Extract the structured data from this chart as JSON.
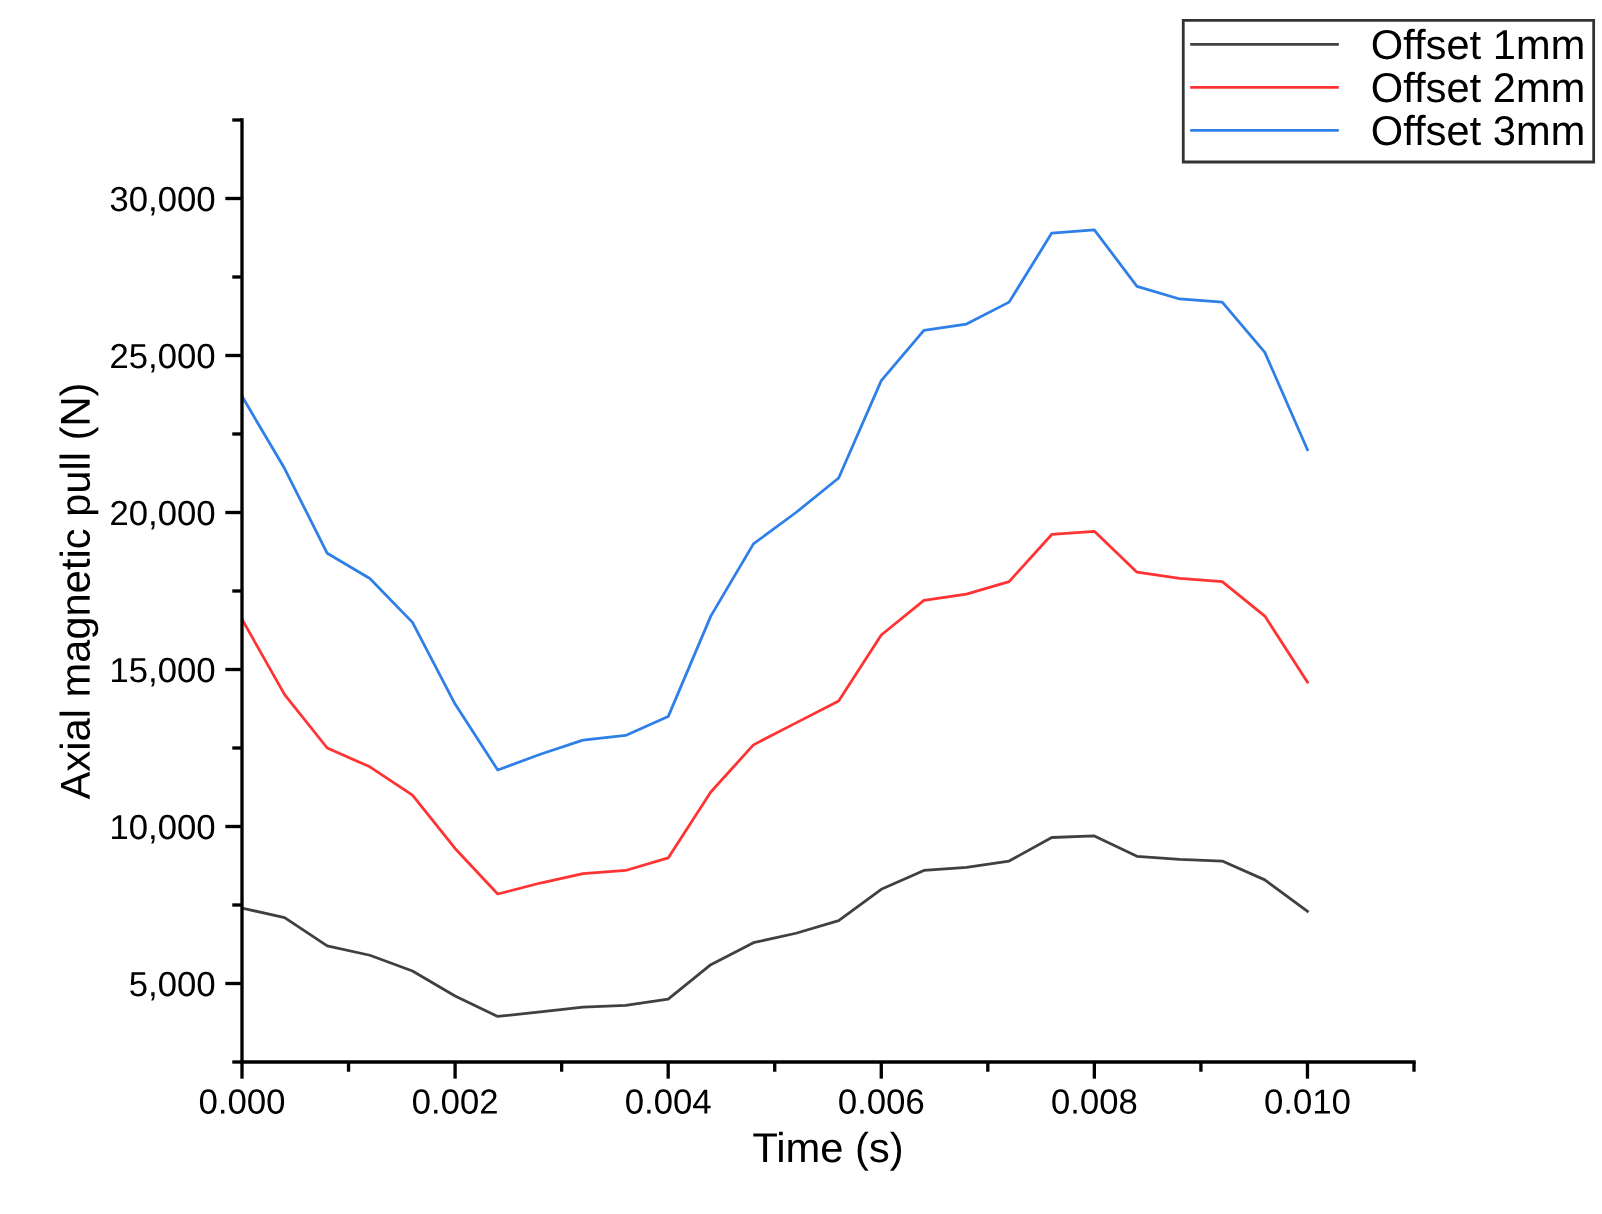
{
  "chart_data": {
    "type": "line",
    "xlabel": "Time (s)",
    "ylabel": "Axial magnetic pull (N)",
    "x": [
      0,
      0.0004,
      0.0008,
      0.0012,
      0.0016,
      0.002,
      0.0024,
      0.0028,
      0.0032,
      0.0036,
      0.004,
      0.0044,
      0.0048,
      0.0052,
      0.0056,
      0.006,
      0.0064,
      0.0068,
      0.0072,
      0.0076,
      0.008,
      0.0084,
      0.0088,
      0.0092,
      0.0096,
      0.01
    ],
    "series": [
      {
        "name": "Offset 1mm",
        "color": "#404040",
        "values": [
          7400,
          7100,
          6200,
          5900,
          5400,
          4600,
          3950,
          4100,
          4250,
          4300,
          4500,
          5600,
          6300,
          6600,
          7000,
          8000,
          8600,
          8700,
          8900,
          9650,
          9700,
          9050,
          8950,
          8900,
          8300,
          7300
        ]
      },
      {
        "name": "Offset 2mm",
        "color": "#ff3333",
        "values": [
          16600,
          14200,
          12500,
          11900,
          11000,
          9300,
          7850,
          8200,
          8500,
          8600,
          9000,
          11100,
          12600,
          13300,
          14000,
          16100,
          17200,
          17400,
          17800,
          19300,
          19400,
          18100,
          17900,
          17800,
          16700,
          14600
        ]
      },
      {
        "name": "Offset 3mm",
        "color": "#2f7fe8",
        "values": [
          23700,
          21400,
          18700,
          17900,
          16500,
          13900,
          11800,
          12300,
          12750,
          12900,
          13500,
          16700,
          19000,
          20000,
          21100,
          24200,
          25800,
          26000,
          26700,
          28900,
          29000,
          27200,
          26800,
          26700,
          25100,
          22000
        ]
      }
    ],
    "xlim": [
      0,
      0.011
    ],
    "ylim": [
      2500,
      32500
    ],
    "xticks": [
      {
        "value": 0,
        "label": "0.000"
      },
      {
        "value": 0.002,
        "label": "0.002"
      },
      {
        "value": 0.004,
        "label": "0.004"
      },
      {
        "value": 0.006,
        "label": "0.006"
      },
      {
        "value": 0.008,
        "label": "0.008"
      },
      {
        "value": 0.01,
        "label": "0.010"
      }
    ],
    "yticks": [
      {
        "value": 5000,
        "label": "5,000"
      },
      {
        "value": 10000,
        "label": "10,000"
      },
      {
        "value": 15000,
        "label": "15,000"
      },
      {
        "value": 20000,
        "label": "20,000"
      },
      {
        "value": 25000,
        "label": "25,000"
      },
      {
        "value": 30000,
        "label": "30,000"
      }
    ],
    "grid": false,
    "legend": "top right",
    "marker": "none",
    "line_style": "solid"
  }
}
